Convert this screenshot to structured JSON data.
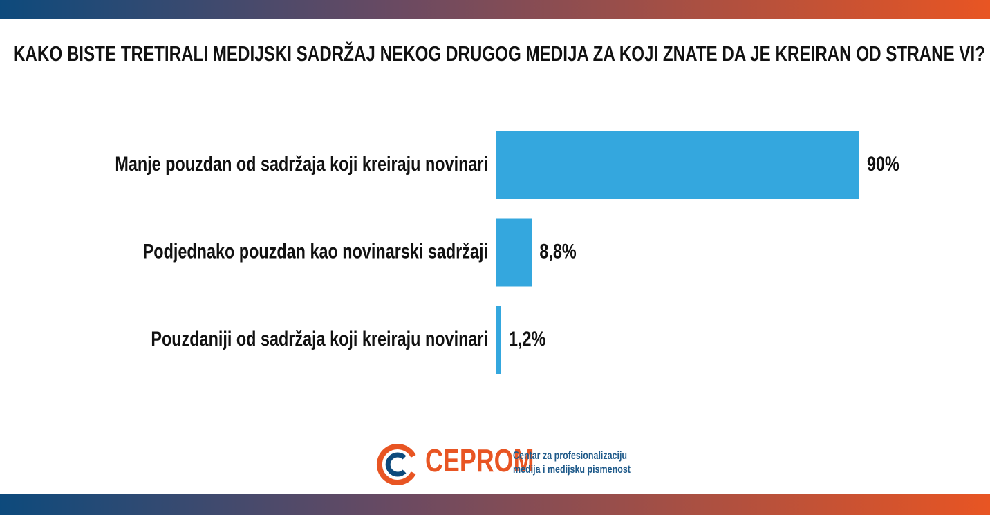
{
  "chart_data": {
    "type": "bar",
    "orientation": "horizontal",
    "title": "KAKO BISTE TRETIRALI MEDIJSKI SADRŽAJ NEKOG DRUGOG MEDIJA ZA KOJI ZNATE DA JE KREIRAN OD STRANE VI?",
    "categories": [
      "Manje pouzdan od sadržaja koji kreiraju novinari",
      "Podjednako pouzdan kao novinarski sadržaji",
      "Pouzdaniji od sadržaja koji kreiraju novinari"
    ],
    "values": [
      90,
      8.8,
      1.2
    ],
    "value_labels": [
      "90%",
      "8,8%",
      "1,2%"
    ],
    "color": "#34a7de"
  },
  "logo": {
    "name": "CEPROM",
    "tagline": [
      "Centar za profesionalizaciju",
      "medija i medijsku pismenost"
    ]
  }
}
